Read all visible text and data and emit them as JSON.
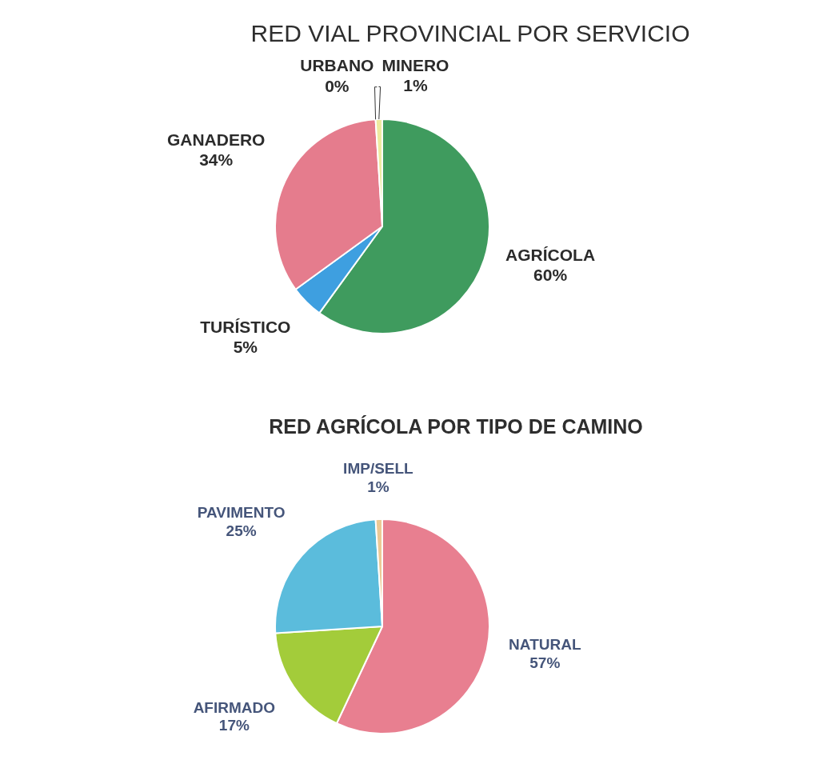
{
  "chart_data": [
    {
      "type": "pie",
      "title": "RED VIAL PROVINCIAL POR SERVICIO",
      "categories": [
        "AGRÍCOLA",
        "TURÍSTICO",
        "GANADERO",
        "URBANO",
        "MINERO"
      ],
      "values": [
        60,
        5,
        34,
        0,
        1
      ],
      "colors": [
        "#3f9b5e",
        "#3e9fe0",
        "#e57c8d",
        "#c8c8c8",
        "#eeeaa0"
      ],
      "value_labels": [
        "60%",
        "5%",
        "34%",
        "0%",
        "1%"
      ]
    },
    {
      "type": "pie",
      "title": "RED AGRÍCOLA POR TIPO DE CAMINO",
      "categories": [
        "NATURAL",
        "AFIRMADO",
        "PAVIMENTO",
        "IMP/SELL"
      ],
      "values": [
        57,
        17,
        25,
        1
      ],
      "colors": [
        "#e87f90",
        "#a3cc3a",
        "#5bbcdc",
        "#ecc995"
      ],
      "value_labels": [
        "57%",
        "17%",
        "25%",
        "1%"
      ]
    }
  ]
}
